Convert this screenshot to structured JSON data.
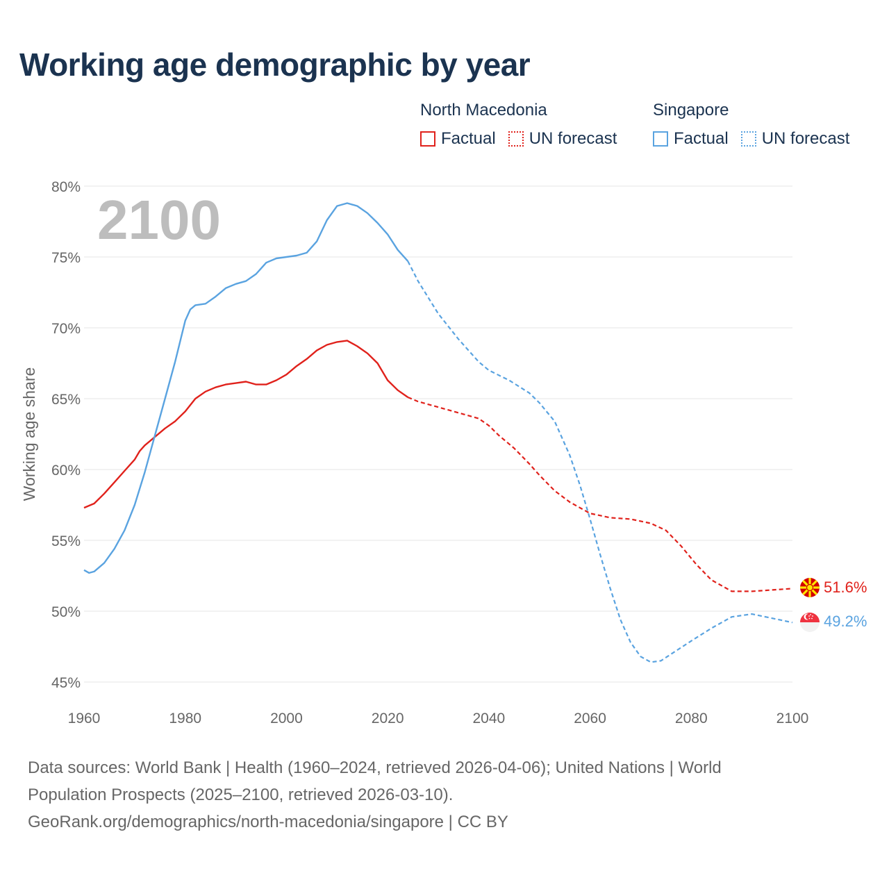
{
  "title": "Working age demographic by year",
  "legend": {
    "groups": [
      {
        "country": "North Macedonia",
        "color": "#e0211b",
        "factual_label": "Factual",
        "forecast_label": "UN forecast"
      },
      {
        "country": "Singapore",
        "color": "#5aa3e0",
        "factual_label": "Factual",
        "forecast_label": "UN forecast"
      }
    ]
  },
  "watermark_year": "2100",
  "footer": {
    "line1": "Data sources: World Bank | Health (1960–2024, retrieved 2026-04-06); United Nations | World",
    "line2": "Population Prospects (2025–2100, retrieved 2026-03-10).",
    "line3": "GeoRank.org/demographics/north-macedonia/singapore | CC BY"
  },
  "chart_data": {
    "type": "line",
    "title": "Working age demographic by year",
    "xlabel": "",
    "ylabel": "Working age share",
    "xlim": [
      1960,
      2100
    ],
    "ylim": [
      45,
      80
    ],
    "x_ticks": [
      1960,
      1980,
      2000,
      2020,
      2040,
      2060,
      2080,
      2100
    ],
    "x_tick_labels": [
      "1960",
      "1980",
      "2000",
      "2020",
      "2040",
      "2060",
      "2080",
      "2100"
    ],
    "y_ticks": [
      45,
      50,
      55,
      60,
      65,
      70,
      75,
      80
    ],
    "y_tick_labels": [
      "45%",
      "50%",
      "55%",
      "60%",
      "65%",
      "70%",
      "75%",
      "80%"
    ],
    "grid": true,
    "forecast_start": 2024,
    "series": [
      {
        "name": "North Macedonia",
        "color": "#e0211b",
        "end_label": "51.6%",
        "points": [
          [
            1960,
            57.3
          ],
          [
            1962,
            57.6
          ],
          [
            1964,
            58.3
          ],
          [
            1966,
            59.1
          ],
          [
            1968,
            59.9
          ],
          [
            1970,
            60.7
          ],
          [
            1971,
            61.3
          ],
          [
            1972,
            61.7
          ],
          [
            1974,
            62.3
          ],
          [
            1976,
            62.9
          ],
          [
            1978,
            63.4
          ],
          [
            1980,
            64.1
          ],
          [
            1982,
            65.0
          ],
          [
            1984,
            65.5
          ],
          [
            1986,
            65.8
          ],
          [
            1988,
            66.0
          ],
          [
            1990,
            66.1
          ],
          [
            1992,
            66.2
          ],
          [
            1994,
            66.0
          ],
          [
            1996,
            66.0
          ],
          [
            1998,
            66.3
          ],
          [
            2000,
            66.7
          ],
          [
            2002,
            67.3
          ],
          [
            2004,
            67.8
          ],
          [
            2006,
            68.4
          ],
          [
            2008,
            68.8
          ],
          [
            2010,
            69.0
          ],
          [
            2012,
            69.1
          ],
          [
            2014,
            68.7
          ],
          [
            2016,
            68.2
          ],
          [
            2018,
            67.5
          ],
          [
            2020,
            66.3
          ],
          [
            2022,
            65.6
          ],
          [
            2024,
            65.1
          ],
          [
            2026,
            64.8
          ],
          [
            2030,
            64.4
          ],
          [
            2035,
            63.9
          ],
          [
            2038,
            63.6
          ],
          [
            2040,
            63.1
          ],
          [
            2042,
            62.4
          ],
          [
            2045,
            61.5
          ],
          [
            2048,
            60.4
          ],
          [
            2050,
            59.6
          ],
          [
            2053,
            58.5
          ],
          [
            2056,
            57.7
          ],
          [
            2060,
            56.9
          ],
          [
            2064,
            56.6
          ],
          [
            2068,
            56.5
          ],
          [
            2072,
            56.2
          ],
          [
            2075,
            55.7
          ],
          [
            2078,
            54.6
          ],
          [
            2081,
            53.3
          ],
          [
            2084,
            52.2
          ],
          [
            2088,
            51.4
          ],
          [
            2092,
            51.4
          ],
          [
            2096,
            51.5
          ],
          [
            2100,
            51.6
          ]
        ]
      },
      {
        "name": "Singapore",
        "color": "#5aa3e0",
        "end_label": "49.2%",
        "points": [
          [
            1960,
            52.9
          ],
          [
            1961,
            52.7
          ],
          [
            1962,
            52.8
          ],
          [
            1964,
            53.4
          ],
          [
            1966,
            54.4
          ],
          [
            1968,
            55.7
          ],
          [
            1970,
            57.5
          ],
          [
            1972,
            59.8
          ],
          [
            1974,
            62.4
          ],
          [
            1976,
            65.0
          ],
          [
            1978,
            67.6
          ],
          [
            1980,
            70.5
          ],
          [
            1981,
            71.3
          ],
          [
            1982,
            71.6
          ],
          [
            1984,
            71.7
          ],
          [
            1986,
            72.2
          ],
          [
            1988,
            72.8
          ],
          [
            1990,
            73.1
          ],
          [
            1992,
            73.3
          ],
          [
            1994,
            73.8
          ],
          [
            1996,
            74.6
          ],
          [
            1998,
            74.9
          ],
          [
            2000,
            75.0
          ],
          [
            2002,
            75.1
          ],
          [
            2004,
            75.3
          ],
          [
            2006,
            76.1
          ],
          [
            2008,
            77.6
          ],
          [
            2010,
            78.6
          ],
          [
            2012,
            78.8
          ],
          [
            2014,
            78.6
          ],
          [
            2016,
            78.1
          ],
          [
            2018,
            77.4
          ],
          [
            2020,
            76.6
          ],
          [
            2022,
            75.5
          ],
          [
            2024,
            74.7
          ],
          [
            2026,
            73.3
          ],
          [
            2030,
            71.0
          ],
          [
            2034,
            69.2
          ],
          [
            2038,
            67.6
          ],
          [
            2040,
            67.0
          ],
          [
            2044,
            66.3
          ],
          [
            2048,
            65.4
          ],
          [
            2050,
            64.7
          ],
          [
            2053,
            63.4
          ],
          [
            2056,
            61.0
          ],
          [
            2058,
            58.9
          ],
          [
            2060,
            56.5
          ],
          [
            2062,
            54.0
          ],
          [
            2064,
            51.6
          ],
          [
            2066,
            49.4
          ],
          [
            2068,
            47.8
          ],
          [
            2070,
            46.8
          ],
          [
            2072,
            46.4
          ],
          [
            2074,
            46.5
          ],
          [
            2077,
            47.2
          ],
          [
            2080,
            47.9
          ],
          [
            2084,
            48.8
          ],
          [
            2088,
            49.6
          ],
          [
            2092,
            49.8
          ],
          [
            2096,
            49.5
          ],
          [
            2100,
            49.2
          ]
        ]
      }
    ]
  }
}
